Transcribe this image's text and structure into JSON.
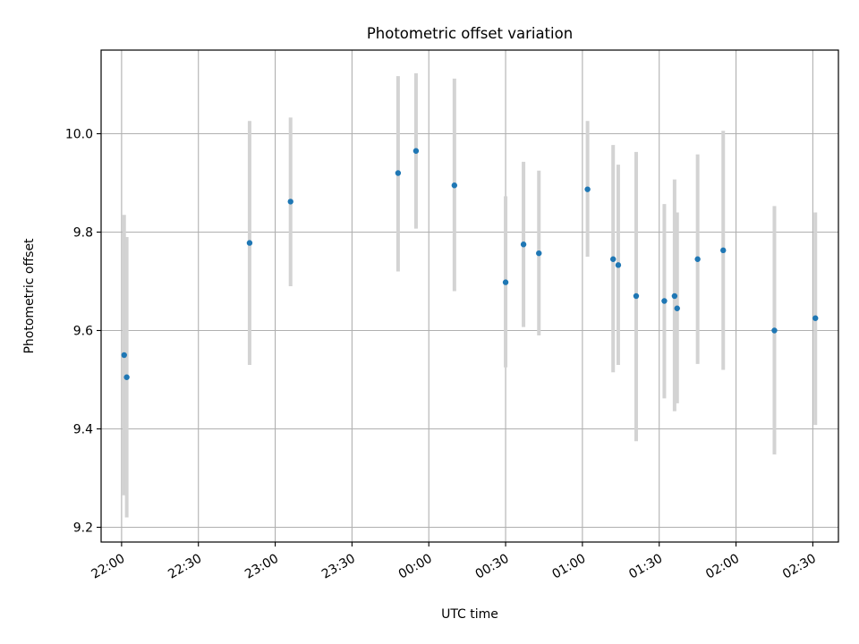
{
  "chart_data": {
    "type": "scatter",
    "title": "Photometric offset variation",
    "xlabel": "UTC time",
    "ylabel": "Photometric offset",
    "x_tick_labels": [
      "22:00",
      "22:30",
      "23:00",
      "23:30",
      "00:00",
      "00:30",
      "01:00",
      "01:30",
      "02:00",
      "02:30"
    ],
    "y_ticks": [
      9.2,
      9.4,
      9.6,
      9.8,
      10.0
    ],
    "y_tick_labels": [
      "9.2",
      "9.4",
      "9.6",
      "9.8",
      "10.0"
    ],
    "xlim": [
      "21:52",
      "02:40"
    ],
    "ylim": [
      9.17,
      10.17
    ],
    "grid": true,
    "colors": {
      "point": "#1f77b4",
      "errorbar": "#d3d3d3",
      "grid": "#b0b0b0"
    },
    "points": [
      {
        "time": "22:01",
        "y": 9.55,
        "ylow": 9.265,
        "yhigh": 9.835
      },
      {
        "time": "22:02",
        "y": 9.505,
        "ylow": 9.22,
        "yhigh": 9.79
      },
      {
        "time": "22:50",
        "y": 9.778,
        "ylow": 9.53,
        "yhigh": 10.026
      },
      {
        "time": "23:06",
        "y": 9.862,
        "ylow": 9.69,
        "yhigh": 10.033
      },
      {
        "time": "23:48",
        "y": 9.92,
        "ylow": 9.72,
        "yhigh": 10.117
      },
      {
        "time": "23:55",
        "y": 9.965,
        "ylow": 9.807,
        "yhigh": 10.123
      },
      {
        "time": "00:10",
        "y": 9.895,
        "ylow": 9.68,
        "yhigh": 10.112
      },
      {
        "time": "00:30",
        "y": 9.698,
        "ylow": 9.525,
        "yhigh": 9.873
      },
      {
        "time": "00:37",
        "y": 9.775,
        "ylow": 9.607,
        "yhigh": 9.943
      },
      {
        "time": "00:43",
        "y": 9.757,
        "ylow": 9.59,
        "yhigh": 9.925
      },
      {
        "time": "01:02",
        "y": 9.887,
        "ylow": 9.75,
        "yhigh": 10.026
      },
      {
        "time": "01:12",
        "y": 9.745,
        "ylow": 9.515,
        "yhigh": 9.977
      },
      {
        "time": "01:14",
        "y": 9.733,
        "ylow": 9.53,
        "yhigh": 9.937
      },
      {
        "time": "01:21",
        "y": 9.67,
        "ylow": 9.375,
        "yhigh": 9.963
      },
      {
        "time": "01:32",
        "y": 9.66,
        "ylow": 9.462,
        "yhigh": 9.857
      },
      {
        "time": "01:36",
        "y": 9.67,
        "ylow": 9.436,
        "yhigh": 9.907
      },
      {
        "time": "01:37",
        "y": 9.645,
        "ylow": 9.452,
        "yhigh": 9.84
      },
      {
        "time": "01:45",
        "y": 9.745,
        "ylow": 9.532,
        "yhigh": 9.958
      },
      {
        "time": "01:55",
        "y": 9.763,
        "ylow": 9.52,
        "yhigh": 10.006
      },
      {
        "time": "02:15",
        "y": 9.6,
        "ylow": 9.348,
        "yhigh": 9.853
      },
      {
        "time": "02:31",
        "y": 9.625,
        "ylow": 9.408,
        "yhigh": 9.84
      }
    ]
  }
}
